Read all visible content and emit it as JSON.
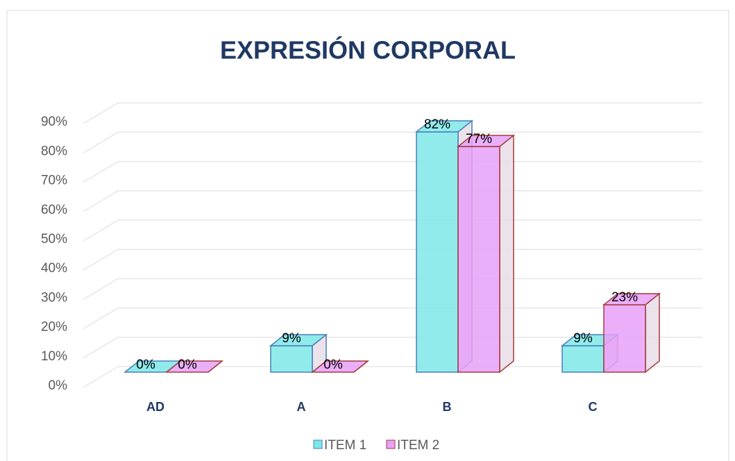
{
  "chart_data": {
    "type": "bar3d",
    "title": "EXPRESIÓN CORPORAL",
    "categories": [
      "AD",
      "A",
      "B",
      "C"
    ],
    "series": [
      {
        "name": "ITEM 1",
        "color": "#7ee8e8",
        "edge": "#4a7ebb",
        "values": [
          0,
          9,
          82,
          9
        ],
        "value_labels": [
          "0%",
          "9%",
          "82%",
          "9%"
        ]
      },
      {
        "name": "ITEM 2",
        "color": "#e8a0f8",
        "edge": "#a33a3a",
        "values": [
          0,
          0,
          77,
          23
        ],
        "value_labels": [
          "0%",
          "0%",
          "77%",
          "23%"
        ]
      }
    ],
    "ylim": [
      0,
      90
    ],
    "yticks": [
      {
        "value": 0,
        "label": "0%"
      },
      {
        "value": 10,
        "label": "10%"
      },
      {
        "value": 20,
        "label": "20%"
      },
      {
        "value": 30,
        "label": "30%"
      },
      {
        "value": 40,
        "label": "40%"
      },
      {
        "value": 50,
        "label": "50%"
      },
      {
        "value": 60,
        "label": "60%"
      },
      {
        "value": 70,
        "label": "70%"
      },
      {
        "value": 80,
        "label": "80%"
      },
      {
        "value": 90,
        "label": "90%"
      }
    ],
    "grid": true,
    "legend": "bottom"
  }
}
